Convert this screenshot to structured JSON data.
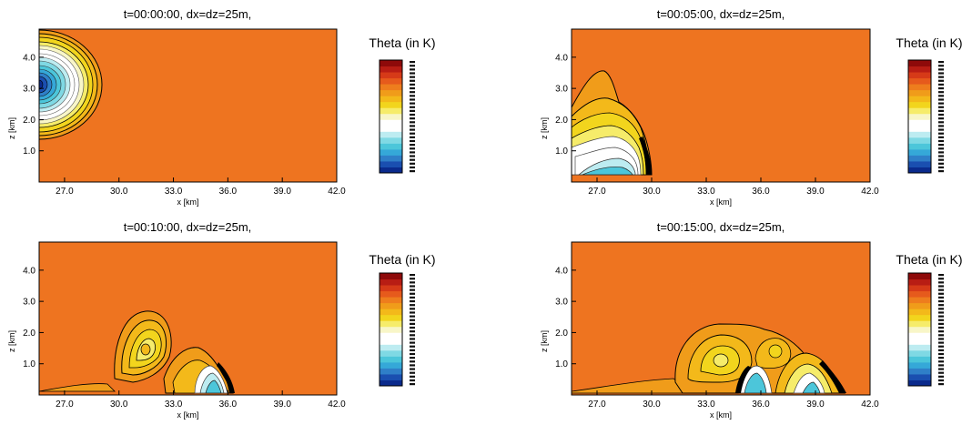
{
  "figure": {
    "colorbar_title": "Theta (in K)",
    "xlabel": "x [km]",
    "ylabel": "z [km]"
  },
  "colors": {
    "background_field": "#ee7420",
    "contour_line": "#000000",
    "colorbar": [
      "#0a2a8c",
      "#1a4fb0",
      "#2f7fc8",
      "#35a8d8",
      "#4cc6da",
      "#7fd9e4",
      "#bdecf1",
      "#ffffff",
      "#ffffff",
      "#f8f6c8",
      "#f6ec6a",
      "#f2d51d",
      "#f3b91a",
      "#f09c1a",
      "#ee7d1d",
      "#e65a1c",
      "#d63a18",
      "#b81d14",
      "#8e0a0a"
    ]
  },
  "chart_data": [
    {
      "type": "contour",
      "title": "t=00:00:00, dx=dz=25m,",
      "xticks": [
        "27.0",
        "30.0",
        "33.0",
        "36.0",
        "39.0",
        "42.0"
      ],
      "yticks": [
        "1.0",
        "2.0",
        "3.0",
        "4.0"
      ],
      "xlim": [
        25.6,
        42.0
      ],
      "ylim": [
        0,
        4.9
      ],
      "xlabel": "x [km]",
      "ylabel": "z [km]",
      "features": [
        {
          "kind": "cold-bubble",
          "center": [
            25.6,
            3.0
          ],
          "radii": [
            2.0,
            1.75
          ]
        }
      ]
    },
    {
      "type": "contour",
      "title": "t=00:05:00, dx=dz=25m,",
      "xticks": [
        "27.0",
        "30.0",
        "33.0",
        "36.0",
        "39.0",
        "42.0"
      ],
      "yticks": [
        "1.0",
        "2.0",
        "3.0",
        "4.0"
      ],
      "xlim": [
        25.6,
        42.0
      ],
      "ylim": [
        0,
        4.9
      ],
      "xlabel": "x [km]",
      "ylabel": "z [km]",
      "features": [
        {
          "kind": "density-current-head",
          "front_x": 29.9,
          "top_z": 3.5
        }
      ]
    },
    {
      "type": "contour",
      "title": "t=00:10:00, dx=dz=25m,",
      "xticks": [
        "27.0",
        "30.0",
        "33.0",
        "36.0",
        "39.0",
        "42.0"
      ],
      "yticks": [
        "1.0",
        "2.0",
        "3.0",
        "4.0"
      ],
      "xlim": [
        25.6,
        42.0
      ],
      "ylim": [
        0,
        4.9
      ],
      "xlabel": "x [km]",
      "ylabel": "z [km]",
      "features": [
        {
          "kind": "kelvin-helmholtz-rotor",
          "center": [
            31.2,
            1.6
          ]
        },
        {
          "kind": "kelvin-helmholtz-rotor",
          "center": [
            34.0,
            0.9
          ]
        },
        {
          "kind": "density-current-head",
          "front_x": 36.0
        }
      ]
    },
    {
      "type": "contour",
      "title": "t=00:15:00, dx=dz=25m,",
      "xticks": [
        "27.0",
        "30.0",
        "33.0",
        "36.0",
        "39.0",
        "42.0"
      ],
      "yticks": [
        "1.0",
        "2.0",
        "3.0",
        "4.0"
      ],
      "xlim": [
        25.6,
        42.0
      ],
      "ylim": [
        0,
        4.9
      ],
      "xlabel": "x [km]",
      "ylabel": "z [km]",
      "features": [
        {
          "kind": "kelvin-helmholtz-rotor",
          "center": [
            33.9,
            1.1
          ]
        },
        {
          "kind": "kelvin-helmholtz-rotor",
          "center": [
            37.0,
            1.4
          ]
        },
        {
          "kind": "density-current-head",
          "front_x": 41.2
        }
      ]
    }
  ]
}
